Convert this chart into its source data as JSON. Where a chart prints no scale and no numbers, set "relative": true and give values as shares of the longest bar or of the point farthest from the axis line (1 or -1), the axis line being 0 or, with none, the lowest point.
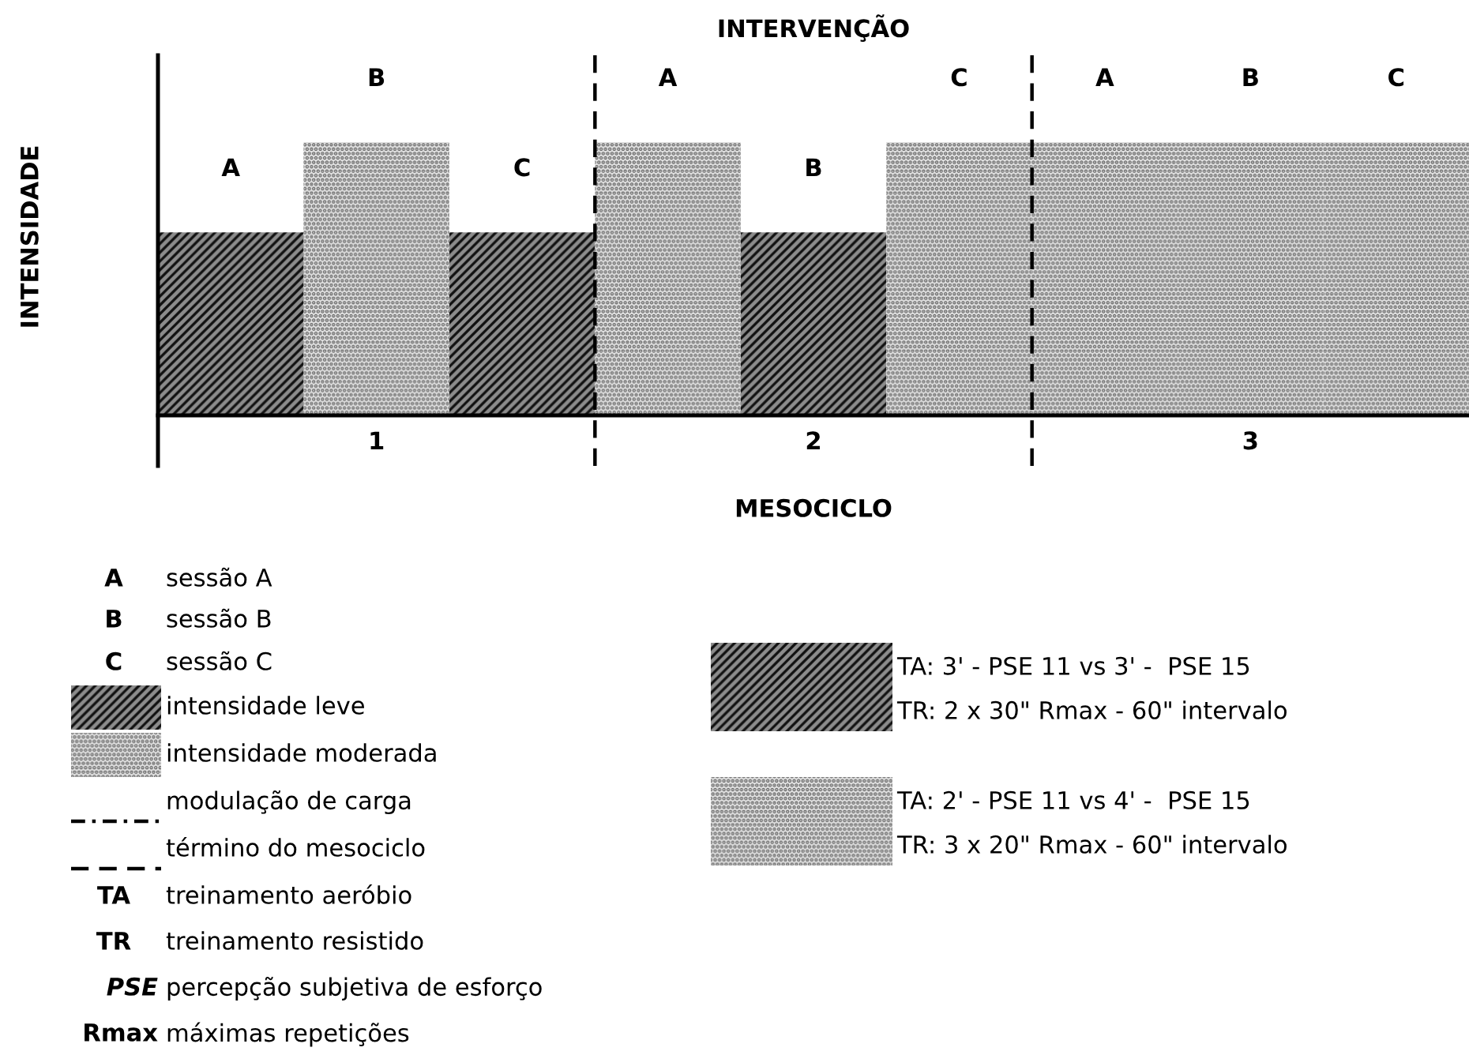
{
  "chart_data": {
    "type": "bar",
    "title": "INTERVENÇÃO",
    "xlabel": "MESOCICLO",
    "ylabel": "INTENSIDADE",
    "categories": [
      "A",
      "B",
      "C",
      "A",
      "B",
      "C",
      "A",
      "B",
      "C"
    ],
    "relative": true,
    "legend": "bottom left",
    "series": [
      {
        "name": "intensidade leve",
        "color": "#8c8c8c",
        "values": [
          0.67,
          null,
          0.67,
          null,
          0.67,
          null,
          null,
          null,
          null
        ]
      },
      {
        "name": "intensidade moderada",
        "color": "#e3e3e3",
        "values": [
          null,
          1,
          null,
          1,
          null,
          1,
          1,
          1,
          1
        ]
      }
    ],
    "annotations": [
      "1",
      "2",
      "3",
      "A",
      "sessão A",
      "B",
      "sessão B",
      "C",
      "sessão C",
      "modulação de carga",
      "término do mesociclo",
      "TA",
      "treinamento aeróbio",
      "TR",
      "treinamento resistido",
      "PSE",
      "percepção subjetiva de esforço",
      "Rmax",
      "máximas repetições",
      "TA: 3' - PSE 11 vs 3' -  PSE 15",
      "TR: 2 x 30\" Rmax - 60\" intervalo",
      "TA: 2' - PSE 11 vs 4' -  PSE 15",
      "TR: 3 x 20\" Rmax - 60\" intervalo"
    ]
  }
}
